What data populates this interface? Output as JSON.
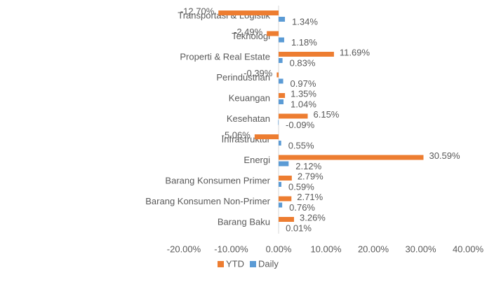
{
  "chart_data": {
    "type": "bar",
    "orientation": "horizontal",
    "categories": [
      "Transportasi & Logistik",
      "Teknologi",
      "Properti & Real Estate",
      "Perindustrian",
      "Keuangan",
      "Kesehatan",
      "Infrastruktur",
      "Energi",
      "Barang Konsumen Primer",
      "Barang Konsumen Non-Primer",
      "Barang Baku"
    ],
    "series": [
      {
        "name": "YTD",
        "color": "#ed7d31",
        "values": [
          -12.7,
          -2.49,
          11.69,
          -0.39,
          1.35,
          6.15,
          -5.06,
          30.59,
          2.79,
          2.71,
          3.26
        ],
        "value_labels": [
          "-12.70%",
          "-2.49%",
          "11.69%",
          "-0.39%",
          "1.35%",
          "6.15%",
          "-5.06%",
          "30.59%",
          "2.79%",
          "2.71%",
          "3.26%"
        ]
      },
      {
        "name": "Daily",
        "color": "#5b9bd5",
        "values": [
          1.34,
          1.18,
          0.83,
          0.97,
          1.04,
          -0.09,
          0.55,
          2.12,
          0.59,
          0.76,
          0.01
        ],
        "value_labels": [
          "1.34%",
          "1.18%",
          "0.83%",
          "0.97%",
          "1.04%",
          "-0.09%",
          "0.55%",
          "2.12%",
          "0.59%",
          "0.76%",
          "0.01%"
        ]
      }
    ],
    "xlim": [
      -20,
      40
    ],
    "xticks": [
      {
        "value": -20,
        "label": "-20.00%"
      },
      {
        "value": -10,
        "label": "-10.00%"
      },
      {
        "value": 0,
        "label": "0.00%"
      },
      {
        "value": 10,
        "label": "10.00%"
      },
      {
        "value": 20,
        "label": "20.00%"
      },
      {
        "value": 30,
        "label": "30.00%"
      },
      {
        "value": 40,
        "label": "40.00%"
      }
    ],
    "grid": false,
    "legend": "bottom"
  }
}
